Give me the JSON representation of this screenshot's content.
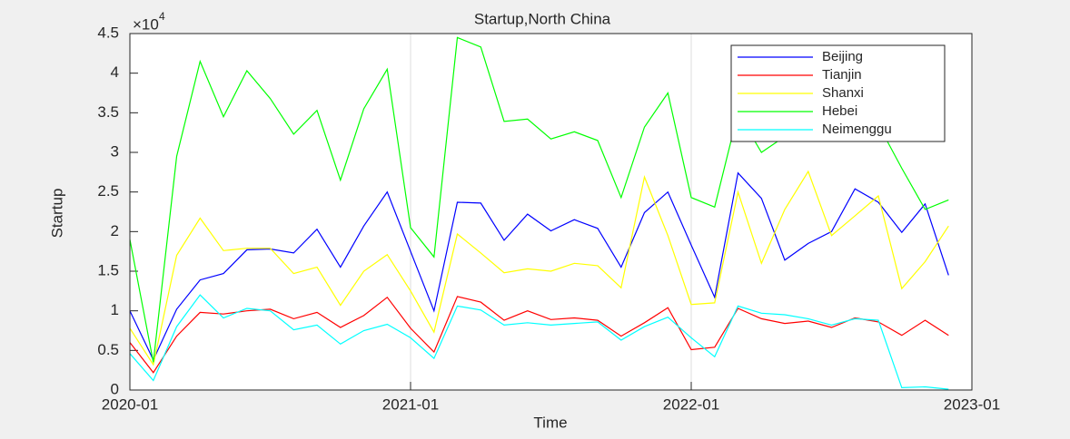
{
  "chart_data": {
    "type": "line",
    "title": "Startup,North China",
    "xlabel": "Time",
    "ylabel": "Startup",
    "y_scale_base": "×10",
    "y_scale_exp": "4",
    "x": [
      "2020-01",
      "2020-02",
      "2020-03",
      "2020-04",
      "2020-05",
      "2020-06",
      "2020-07",
      "2020-08",
      "2020-09",
      "2020-10",
      "2020-11",
      "2020-12",
      "2021-01",
      "2021-02",
      "2021-03",
      "2021-04",
      "2021-05",
      "2021-06",
      "2021-07",
      "2021-08",
      "2021-09",
      "2021-10",
      "2021-11",
      "2021-12",
      "2022-01",
      "2022-02",
      "2022-03",
      "2022-04",
      "2022-05",
      "2022-06",
      "2022-07",
      "2022-08",
      "2022-09",
      "2022-10",
      "2022-11",
      "2022-12"
    ],
    "series": [
      {
        "name": "Beijing",
        "color": "#0000ff",
        "values": [
          1.0,
          0.38,
          1.02,
          1.39,
          1.47,
          1.77,
          1.78,
          1.73,
          2.03,
          1.55,
          2.07,
          2.5,
          1.75,
          1.0,
          2.37,
          2.36,
          1.89,
          2.22,
          2.01,
          2.15,
          2.04,
          1.55,
          2.24,
          2.5,
          1.83,
          1.17,
          2.74,
          2.42,
          1.64,
          1.85,
          2.0,
          2.54,
          2.37,
          1.99,
          2.35,
          1.45
        ]
      },
      {
        "name": "Tianjin",
        "color": "#ff0000",
        "values": [
          0.6,
          0.22,
          0.68,
          0.98,
          0.96,
          1.0,
          1.02,
          0.9,
          0.98,
          0.79,
          0.94,
          1.17,
          0.78,
          0.48,
          1.18,
          1.11,
          0.88,
          1.0,
          0.89,
          0.91,
          0.88,
          0.68,
          0.85,
          1.04,
          0.51,
          0.54,
          1.03,
          0.9,
          0.84,
          0.87,
          0.79,
          0.91,
          0.86,
          0.69,
          0.88,
          0.69
        ]
      },
      {
        "name": "Shanxi",
        "color": "#ffff00",
        "values": [
          0.78,
          0.32,
          1.7,
          2.17,
          1.76,
          1.79,
          1.79,
          1.47,
          1.55,
          1.07,
          1.5,
          1.71,
          1.25,
          0.73,
          1.97,
          1.73,
          1.48,
          1.53,
          1.5,
          1.6,
          1.57,
          1.29,
          2.69,
          1.95,
          1.08,
          1.1,
          2.5,
          1.6,
          2.28,
          2.76,
          1.95,
          2.2,
          2.45,
          1.28,
          1.62,
          2.07
        ]
      },
      {
        "name": "Hebei",
        "color": "#00ff00",
        "values": [
          1.9,
          0.35,
          2.95,
          4.15,
          3.45,
          4.03,
          3.68,
          3.23,
          3.53,
          2.65,
          3.55,
          4.05,
          2.05,
          1.68,
          4.45,
          4.33,
          3.39,
          3.42,
          3.17,
          3.26,
          3.15,
          2.43,
          3.32,
          3.75,
          2.43,
          2.31,
          3.5,
          3.0,
          3.2,
          3.35,
          3.4,
          3.3,
          3.35,
          2.8,
          2.28,
          2.4
        ]
      },
      {
        "name": "Neimenggu",
        "color": "#00ffff",
        "values": [
          0.46,
          0.12,
          0.8,
          1.2,
          0.91,
          1.03,
          1.0,
          0.76,
          0.82,
          0.58,
          0.75,
          0.83,
          0.66,
          0.4,
          1.06,
          1.01,
          0.82,
          0.85,
          0.82,
          0.84,
          0.86,
          0.63,
          0.8,
          0.92,
          0.66,
          0.42,
          1.06,
          0.97,
          0.95,
          0.9,
          0.82,
          0.9,
          0.88,
          0.03,
          0.04,
          0.01
        ]
      }
    ],
    "xlim": [
      "2020-01",
      "2023-01"
    ],
    "xticks": [
      "2020-01",
      "2021-01",
      "2022-01",
      "2023-01"
    ],
    "ylim": [
      0,
      4.5
    ],
    "yticks": [
      0,
      0.5,
      1,
      1.5,
      2,
      2.5,
      3,
      3.5,
      4,
      4.5
    ],
    "xgrid": true,
    "legend": "northeast"
  }
}
